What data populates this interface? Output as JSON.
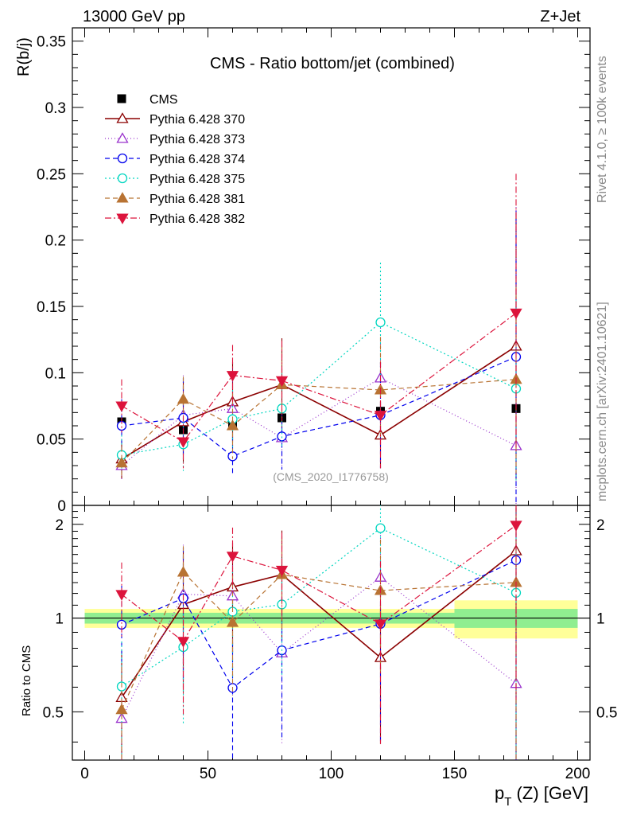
{
  "header": {
    "energy": "13000 GeV pp",
    "process": "Z+Jet",
    "title": "CMS - Ratio bottom/jet (combined)",
    "analysis_id": "(CMS_2020_I1776758)",
    "side_right_top": "Rivet 4.1.0, ≥ 100k events",
    "side_right_bottom": "mcplots.cern.ch [arXiv:2401.10621]"
  },
  "chart_data": {
    "type": "scatter",
    "title": "CMS - Ratio bottom/jet (combined)",
    "xlabel_main": "p",
    "xlabel_sub": "T",
    "xlabel_rest": " (Z) [GeV]",
    "ylabel": "R(b/j)",
    "ratio_ylabel": "Ratio to CMS",
    "xlim": [
      -5,
      205
    ],
    "ylim": [
      0,
      0.36
    ],
    "ratio_ylim": [
      0.35,
      2.3
    ],
    "x_ticks": [
      0,
      50,
      100,
      150,
      200
    ],
    "x_tick_labels": [
      "0",
      "50",
      "100",
      "150",
      "200"
    ],
    "y_ticks": [
      0,
      0.05,
      0.1,
      0.15,
      0.2,
      0.25,
      0.3,
      0.35
    ],
    "y_tick_labels": [
      "0",
      "0.05",
      "0.1",
      "0.15",
      "0.2",
      "0.25",
      "0.3",
      "0.35"
    ],
    "ratio_ticks": [
      0.5,
      1,
      2
    ],
    "ratio_tick_labels": [
      "0.5",
      "1",
      "2"
    ],
    "x": [
      15,
      40,
      60,
      80,
      120,
      175
    ],
    "bins": [
      [
        0,
        30
      ],
      [
        30,
        50
      ],
      [
        50,
        70
      ],
      [
        70,
        90
      ],
      [
        90,
        150
      ],
      [
        150,
        200
      ]
    ],
    "data": {
      "name": "CMS",
      "values": [
        0.063,
        0.057,
        0.062,
        0.066,
        0.071,
        0.073
      ],
      "band_inner": [
        0.04,
        0.04,
        0.04,
        0.04,
        0.04,
        0.07
      ],
      "band_outer": [
        0.07,
        0.07,
        0.07,
        0.07,
        0.07,
        0.14
      ]
    },
    "series": [
      {
        "name": "Pythia 6.428 370",
        "color": "#8b0000",
        "marker": "triangle-open",
        "dash": "",
        "width": 1.6,
        "values": [
          0.035,
          0.063,
          0.078,
          0.091,
          0.053,
          0.12
        ],
        "errors": [
          0.015,
          0.03,
          0.03,
          0.035,
          0.025,
          0.1
        ]
      },
      {
        "name": "Pythia 6.428 373",
        "color": "#9932cc",
        "marker": "triangle-open",
        "dash": "1,3",
        "width": 1.2,
        "values": [
          0.03,
          0.068,
          0.073,
          0.051,
          0.096,
          0.045
        ],
        "errors": [
          0.012,
          0.03,
          0.03,
          0.025,
          0.045,
          0.18
        ]
      },
      {
        "name": "Pythia 6.428 374",
        "color": "#0000ee",
        "marker": "circle-open",
        "dash": "6,4",
        "width": 1.2,
        "values": [
          0.06,
          0.066,
          0.037,
          0.052,
          0.068,
          0.112
        ],
        "errors": [
          0.02,
          0.03,
          0.015,
          0.025,
          0.04,
          0.11
        ]
      },
      {
        "name": "Pythia 6.428 375",
        "color": "#00d6c0",
        "marker": "circle-open",
        "dash": "2,3",
        "width": 1.2,
        "values": [
          0.038,
          0.046,
          0.065,
          0.073,
          0.138,
          0.088
        ],
        "errors": [
          0.015,
          0.02,
          0.025,
          0.03,
          0.045,
          0.07
        ]
      },
      {
        "name": "Pythia 6.428 381",
        "color": "#b87333",
        "marker": "triangle-filled",
        "dash": "6,4",
        "width": 1.2,
        "values": [
          0.032,
          0.08,
          0.06,
          0.091,
          0.087,
          0.095
        ],
        "errors": [
          0.012,
          0.017,
          0.025,
          0.03,
          0.04,
          0.07
        ]
      },
      {
        "name": "Pythia 6.428 382",
        "color": "#dc143c",
        "marker": "triangledown-filled",
        "dash": "8,3,2,3",
        "width": 1.2,
        "values": [
          0.075,
          0.048,
          0.098,
          0.094,
          0.068,
          0.145
        ],
        "errors": [
          0.02,
          0.02,
          0.023,
          0.03,
          0.04,
          0.105
        ]
      }
    ]
  }
}
